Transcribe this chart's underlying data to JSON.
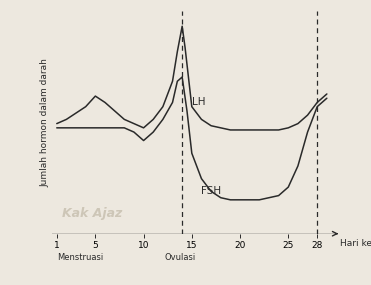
{
  "ylabel": "Jumlah hormon dalam darah",
  "xlabel": "Hari ke-",
  "x_ticks": [
    1,
    5,
    10,
    15,
    20,
    25,
    28
  ],
  "x_labels": [
    "1",
    "5",
    "10",
    "15",
    "20",
    "25",
    "28"
  ],
  "dashed_lines": [
    14,
    28
  ],
  "menstruasi_label": "Menstruasi",
  "ovulasi_label": "Ovulasi",
  "LH_label": "LH",
  "FSH_label": "FSH",
  "watermark": "Kak Ajaz",
  "bg_color": "#ede8df",
  "line_color": "#2a2a2a",
  "LH": {
    "x": [
      1,
      2,
      3,
      4,
      5,
      6,
      7,
      8,
      9,
      10,
      11,
      12,
      13,
      13.5,
      14,
      14.3,
      14.7,
      15,
      16,
      17,
      18,
      19,
      20,
      21,
      22,
      23,
      24,
      25,
      26,
      27,
      28,
      29
    ],
    "y": [
      0.52,
      0.54,
      0.57,
      0.6,
      0.65,
      0.62,
      0.58,
      0.54,
      0.52,
      0.5,
      0.54,
      0.6,
      0.72,
      0.86,
      0.98,
      0.88,
      0.72,
      0.6,
      0.54,
      0.51,
      0.5,
      0.49,
      0.49,
      0.49,
      0.49,
      0.49,
      0.49,
      0.5,
      0.52,
      0.56,
      0.62,
      0.66
    ]
  },
  "FSH": {
    "x": [
      1,
      2,
      3,
      4,
      5,
      6,
      7,
      8,
      9,
      10,
      11,
      12,
      13,
      13.5,
      14,
      14.5,
      15,
      16,
      17,
      18,
      19,
      20,
      21,
      22,
      23,
      24,
      25,
      26,
      27,
      28,
      29
    ],
    "y": [
      0.5,
      0.5,
      0.5,
      0.5,
      0.5,
      0.5,
      0.5,
      0.5,
      0.48,
      0.44,
      0.48,
      0.54,
      0.62,
      0.72,
      0.74,
      0.58,
      0.38,
      0.26,
      0.2,
      0.17,
      0.16,
      0.16,
      0.16,
      0.16,
      0.17,
      0.18,
      0.22,
      0.32,
      0.48,
      0.6,
      0.64
    ]
  },
  "ylim": [
    0.0,
    1.05
  ],
  "xlim": [
    0.5,
    30.5
  ]
}
